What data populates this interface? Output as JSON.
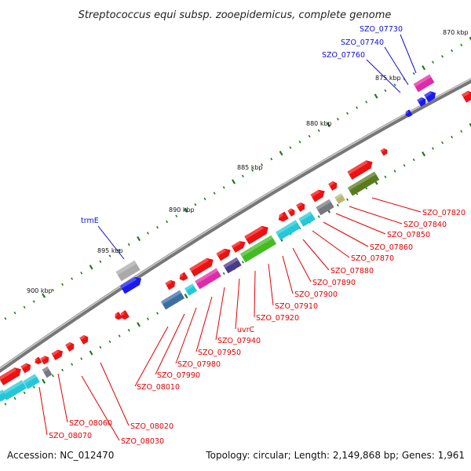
{
  "title": "Streptococcus equi subsp. zooepidemicus, complete genome",
  "footer": {
    "accession": "Accession: NC_012470",
    "summary": "Topology: circular; Length: 2,149,868 bp; Genes: 1,961"
  },
  "kbp_labels": [
    "870 kbp",
    "875 kbp",
    "880 kbp",
    "885 kbp",
    "890 kbp",
    "895 kbp",
    "900 kbp"
  ],
  "colors": {
    "red": "#ee1111",
    "blue": "#1a1aee",
    "cyan": "#22c8d8",
    "green": "#44bb22",
    "olive": "#5a7a20",
    "khaki": "#b8b872",
    "magenta": "#e02aa8",
    "slate": "#3a6ea5",
    "purple": "#4a3a8a",
    "gray": "#777780",
    "silver": "#aaaaaa",
    "tick": "#1f7a1f",
    "backbone": "#8a8a8a",
    "label_blue": "#1010d0",
    "label_red": "#e00000"
  },
  "gene_labels_top": [
    "SZO_07730",
    "SZO_07740",
    "SZO_07760",
    "trmE"
  ],
  "gene_labels_bottom": [
    "SZO_07820",
    "SZO_07840",
    "SZO_07850",
    "SZO_07860",
    "SZO_07870",
    "SZO_07880",
    "SZO_07890",
    "SZO_07900",
    "SZO_07910",
    "SZO_07920",
    "uvrC",
    "SZO_07940",
    "SZO_07950",
    "SZO_07980",
    "SZO_07990",
    "SZO_08010",
    "SZO_08020",
    "SZO_08030",
    "SZO_08060",
    "SZO_08070"
  ]
}
